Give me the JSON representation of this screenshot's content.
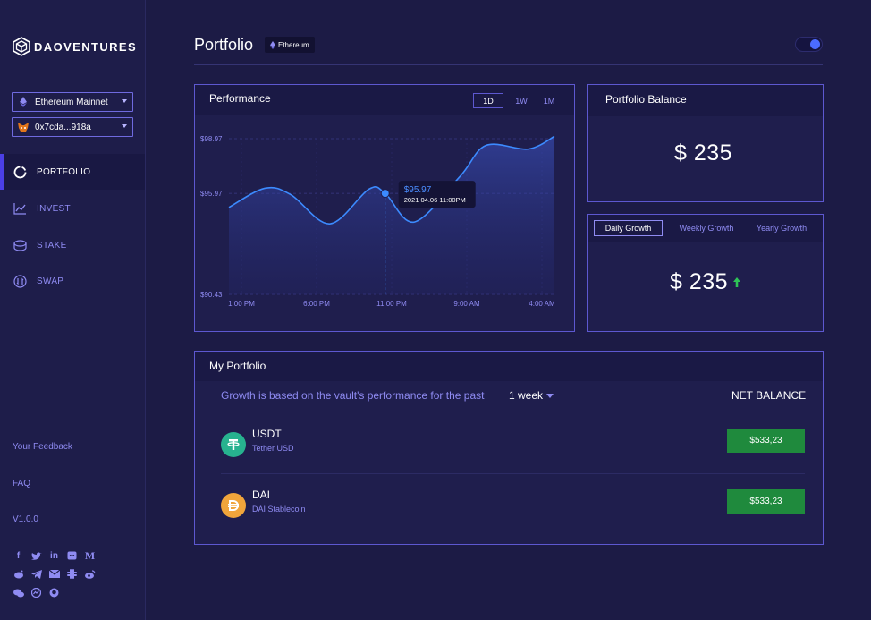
{
  "app": {
    "name": "DAOVENTURES"
  },
  "sidebar": {
    "network_select": "Ethereum Mainnet",
    "wallet_select": "0x7cda...918a",
    "nav": [
      {
        "label": "PORTFOLIO",
        "icon": "portfolio-icon",
        "active": true
      },
      {
        "label": "INVEST",
        "icon": "invest-chart-icon"
      },
      {
        "label": "STAKE",
        "icon": "stake-coins-icon"
      },
      {
        "label": "SWAP",
        "icon": "swap-icon"
      }
    ],
    "links": {
      "feedback": "Your Feedback",
      "faq": "FAQ",
      "version": "V1.0.0"
    },
    "socials": [
      "facebook-icon",
      "twitter-icon",
      "linkedin-icon",
      "discord-icon",
      "medium-icon",
      "reddit-icon",
      "telegram-icon",
      "email-icon",
      "slack-icon",
      "weibo-icon",
      "wechat-icon",
      "messenger-icon",
      "github-icon"
    ]
  },
  "header": {
    "title": "Portfolio",
    "chain_badge": "Ethereum"
  },
  "performance": {
    "title": "Performance",
    "ranges": [
      "1D",
      "1W",
      "1M"
    ],
    "active_range": "1D",
    "tooltip": {
      "value": "$95.97",
      "date": "2021 04.06 11:00PM"
    }
  },
  "chart_data": {
    "type": "area",
    "x_ticks": [
      "1:00 PM",
      "6:00 PM",
      "11:00 PM",
      "9:00 AM",
      "4:00 AM"
    ],
    "y_ticks": [
      "$98.97",
      "$95.97",
      "$90.43"
    ],
    "ylim": [
      90.43,
      98.97
    ],
    "points": [
      {
        "x": 0.0,
        "y": 95.2
      },
      {
        "x": 0.11,
        "y": 96.25
      },
      {
        "x": 0.19,
        "y": 95.9
      },
      {
        "x": 0.31,
        "y": 94.3
      },
      {
        "x": 0.43,
        "y": 96.2
      },
      {
        "x": 0.48,
        "y": 95.97
      },
      {
        "x": 0.57,
        "y": 94.4
      },
      {
        "x": 0.71,
        "y": 96.9
      },
      {
        "x": 0.79,
        "y": 98.6
      },
      {
        "x": 0.92,
        "y": 98.4
      },
      {
        "x": 1.0,
        "y": 99.1
      }
    ],
    "highlight_index": 5,
    "grid": true
  },
  "portfolio_balance": {
    "title": "Portfolio Balance",
    "value": "$ 235"
  },
  "growth": {
    "tabs": [
      "Daily Growth",
      "Weekly Growth",
      "Yearly Growth"
    ],
    "active_tab": "Daily Growth",
    "value": "$ 235"
  },
  "my_portfolio": {
    "title": "My Portfolio",
    "subtitle": "Growth is based on the vault's performance for the past",
    "period": "1 week",
    "net_balance_header": "NET BALANCE",
    "tokens": [
      {
        "symbol": "USDT",
        "name": "Tether USD",
        "balance": "$533,23",
        "icon": "tether-icon",
        "color": "#27b28f"
      },
      {
        "symbol": "DAI",
        "name": "DAI Stablecoin",
        "balance": "$533,23",
        "icon": "dai-icon",
        "color": "#f0a53b"
      }
    ]
  },
  "colors": {
    "accent": "#5d58d0",
    "positive": "#1f8a3d",
    "link": "#8f8bf2",
    "line": "#3c8bff"
  }
}
